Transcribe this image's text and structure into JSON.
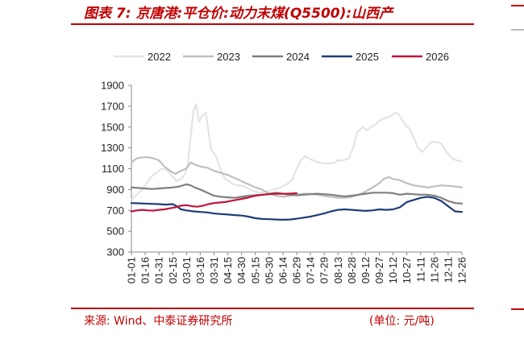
{
  "header": {
    "title": "图表 7:  京唐港:平仓价:动力末煤(Q5500):山西产"
  },
  "footer": {
    "source": "来源:    Wind、中泰证券研究所",
    "unit": "(单位: 元/吨)"
  },
  "chart_data": {
    "type": "line",
    "title": "京唐港:平仓价:动力末煤(Q5500):山西产",
    "unit": "元/吨",
    "ylim": [
      300,
      1900
    ],
    "yticks": [
      300,
      500,
      700,
      900,
      1100,
      1300,
      1500,
      1700,
      1900
    ],
    "categories": [
      "01-01",
      "01-16",
      "01-31",
      "02-15",
      "03-01",
      "03-16",
      "03-31",
      "04-15",
      "04-30",
      "05-15",
      "05-30",
      "06-14",
      "06-29",
      "07-14",
      "07-29",
      "08-13",
      "08-28",
      "09-12",
      "09-27",
      "10-12",
      "10-27",
      "11-11",
      "11-26",
      "12-11",
      "12-26"
    ],
    "legend_position": "top",
    "grid": false,
    "series": [
      {
        "name": "2022",
        "color": "#e4e4e4",
        "x": [
          0,
          0.3,
          0.8,
          1.2,
          1.5,
          1.8,
          2.2,
          2.6,
          3.0,
          3.3,
          3.6,
          3.9,
          4.1,
          4.3,
          4.5,
          4.7,
          4.9,
          5.1,
          5.4,
          5.6,
          5.8,
          6.0,
          6.2,
          6.4,
          6.6,
          6.8,
          7.1,
          7.4,
          7.8,
          8.2,
          8.6,
          9.0,
          9.4,
          9.8,
          10.3,
          10.8,
          11.3,
          11.7,
          12.0,
          12.3,
          12.6,
          13.0,
          13.6,
          14.0,
          14.4,
          14.7,
          15.0,
          15.4,
          15.8,
          16.1,
          16.4,
          16.8,
          17.1,
          17.4,
          17.7,
          18.0,
          18.3,
          18.6,
          18.9,
          19.2,
          19.4,
          19.6,
          19.9,
          20.2,
          20.5,
          20.8,
          21.1,
          21.4,
          21.7,
          22.0,
          22.3,
          22.5,
          22.7,
          23.0,
          23.3,
          23.6,
          24.0
        ],
        "values": [
          800,
          840,
          900,
          980,
          1030,
          1060,
          1100,
          1090,
          1020,
          980,
          1000,
          1050,
          1150,
          1400,
          1650,
          1720,
          1550,
          1600,
          1640,
          1450,
          1280,
          1250,
          1200,
          1120,
          1050,
          1000,
          980,
          950,
          940,
          930,
          900,
          880,
          870,
          880,
          900,
          920,
          950,
          1000,
          1100,
          1180,
          1220,
          1190,
          1160,
          1150,
          1150,
          1155,
          1180,
          1180,
          1200,
          1300,
          1450,
          1500,
          1470,
          1500,
          1520,
          1560,
          1580,
          1590,
          1610,
          1640,
          1620,
          1580,
          1520,
          1480,
          1400,
          1300,
          1260,
          1300,
          1350,
          1360,
          1350,
          1340,
          1300,
          1240,
          1200,
          1180,
          1170
        ]
      },
      {
        "name": "2023",
        "color": "#bfbfbf",
        "x": [
          0,
          0.4,
          0.8,
          1.2,
          1.6,
          2.0,
          2.4,
          2.8,
          3.2,
          3.6,
          4.0,
          4.3,
          4.6,
          5.0,
          5.5,
          6.0,
          6.5,
          7.0,
          7.5,
          8.0,
          8.5,
          9.0,
          9.5,
          10.0,
          10.5,
          11.0,
          11.5,
          12.0,
          12.5,
          13.0,
          13.5,
          14.0,
          14.5,
          15.0,
          15.5,
          16.0,
          16.5,
          17.0,
          17.5,
          18.0,
          18.3,
          18.7,
          19.0,
          19.5,
          20.0,
          20.5,
          21.0,
          21.5,
          22.0,
          22.5,
          23.0,
          23.5,
          24.0
        ],
        "values": [
          1160,
          1200,
          1210,
          1210,
          1200,
          1180,
          1120,
          1080,
          1050,
          1080,
          1100,
          1160,
          1140,
          1120,
          1110,
          1080,
          1060,
          1040,
          1010,
          980,
          950,
          920,
          900,
          860,
          840,
          830,
          840,
          850,
          860,
          860,
          850,
          840,
          830,
          820,
          820,
          830,
          850,
          880,
          920,
          960,
          1000,
          1020,
          1000,
          990,
          960,
          940,
          930,
          920,
          930,
          940,
          935,
          930,
          920
        ]
      },
      {
        "name": "2024",
        "color": "#7f7f7f",
        "x": [
          0,
          0.5,
          1.0,
          1.5,
          2.0,
          2.5,
          3.0,
          3.5,
          4.0,
          4.3,
          4.6,
          5.0,
          5.5,
          6.0,
          6.5,
          7.0,
          7.5,
          8.0,
          8.5,
          9.0,
          9.5,
          10.0,
          10.5,
          11.0,
          11.5,
          12.0,
          12.5,
          13.0,
          13.5,
          14.0,
          14.5,
          15.0,
          15.5,
          16.0,
          16.5,
          17.0,
          17.5,
          18.0,
          18.5,
          19.0,
          19.5,
          20.0,
          20.5,
          21.0,
          21.5,
          22.0,
          22.5,
          23.0,
          23.5,
          24.0
        ],
        "values": [
          920,
          915,
          910,
          905,
          910,
          915,
          920,
          930,
          950,
          940,
          920,
          900,
          870,
          840,
          830,
          825,
          820,
          830,
          840,
          845,
          850,
          860,
          870,
          860,
          850,
          845,
          850,
          855,
          860,
          855,
          850,
          840,
          835,
          840,
          850,
          860,
          870,
          870,
          870,
          865,
          850,
          860,
          855,
          850,
          850,
          840,
          820,
          790,
          770,
          765
        ]
      },
      {
        "name": "2025",
        "color": "#1f3c78",
        "x": [
          0,
          0.5,
          1.0,
          1.5,
          2.0,
          2.5,
          3.0,
          3.3,
          3.6,
          4.0,
          4.5,
          5.0,
          5.5,
          6.0,
          6.5,
          7.0,
          7.5,
          8.0,
          8.5,
          9.0,
          9.5,
          10.0,
          10.5,
          11.0,
          11.5,
          12.0,
          12.5,
          13.0,
          13.5,
          14.0,
          14.5,
          15.0,
          15.5,
          16.0,
          16.5,
          17.0,
          17.5,
          18.0,
          18.5,
          19.0,
          19.5,
          20.0,
          20.5,
          21.0,
          21.5,
          22.0,
          22.5,
          23.0,
          23.5,
          24.0
        ],
        "values": [
          770,
          768,
          765,
          762,
          760,
          755,
          760,
          740,
          710,
          700,
          690,
          685,
          680,
          670,
          665,
          660,
          655,
          650,
          640,
          625,
          618,
          615,
          612,
          610,
          612,
          620,
          630,
          640,
          655,
          670,
          690,
          705,
          710,
          705,
          700,
          695,
          700,
          710,
          705,
          710,
          730,
          780,
          800,
          820,
          830,
          820,
          790,
          740,
          690,
          685
        ]
      },
      {
        "name": "2026",
        "color": "#c0143c",
        "x": [
          0,
          0.4,
          0.8,
          1.2,
          1.6,
          2.0,
          2.4,
          2.8,
          3.2,
          3.6,
          4.0,
          4.4,
          4.8,
          5.2,
          5.6,
          6.0,
          6.4,
          6.8,
          7.2,
          7.6,
          8.0,
          8.4,
          8.8,
          9.2,
          9.6,
          10.0,
          10.4,
          10.8,
          11.2,
          11.6,
          12.0
        ],
        "values": [
          690,
          700,
          705,
          700,
          698,
          705,
          710,
          720,
          730,
          745,
          750,
          740,
          735,
          745,
          760,
          770,
          775,
          780,
          790,
          800,
          810,
          820,
          835,
          845,
          850,
          855,
          860,
          860,
          860,
          862,
          865
        ]
      }
    ]
  }
}
